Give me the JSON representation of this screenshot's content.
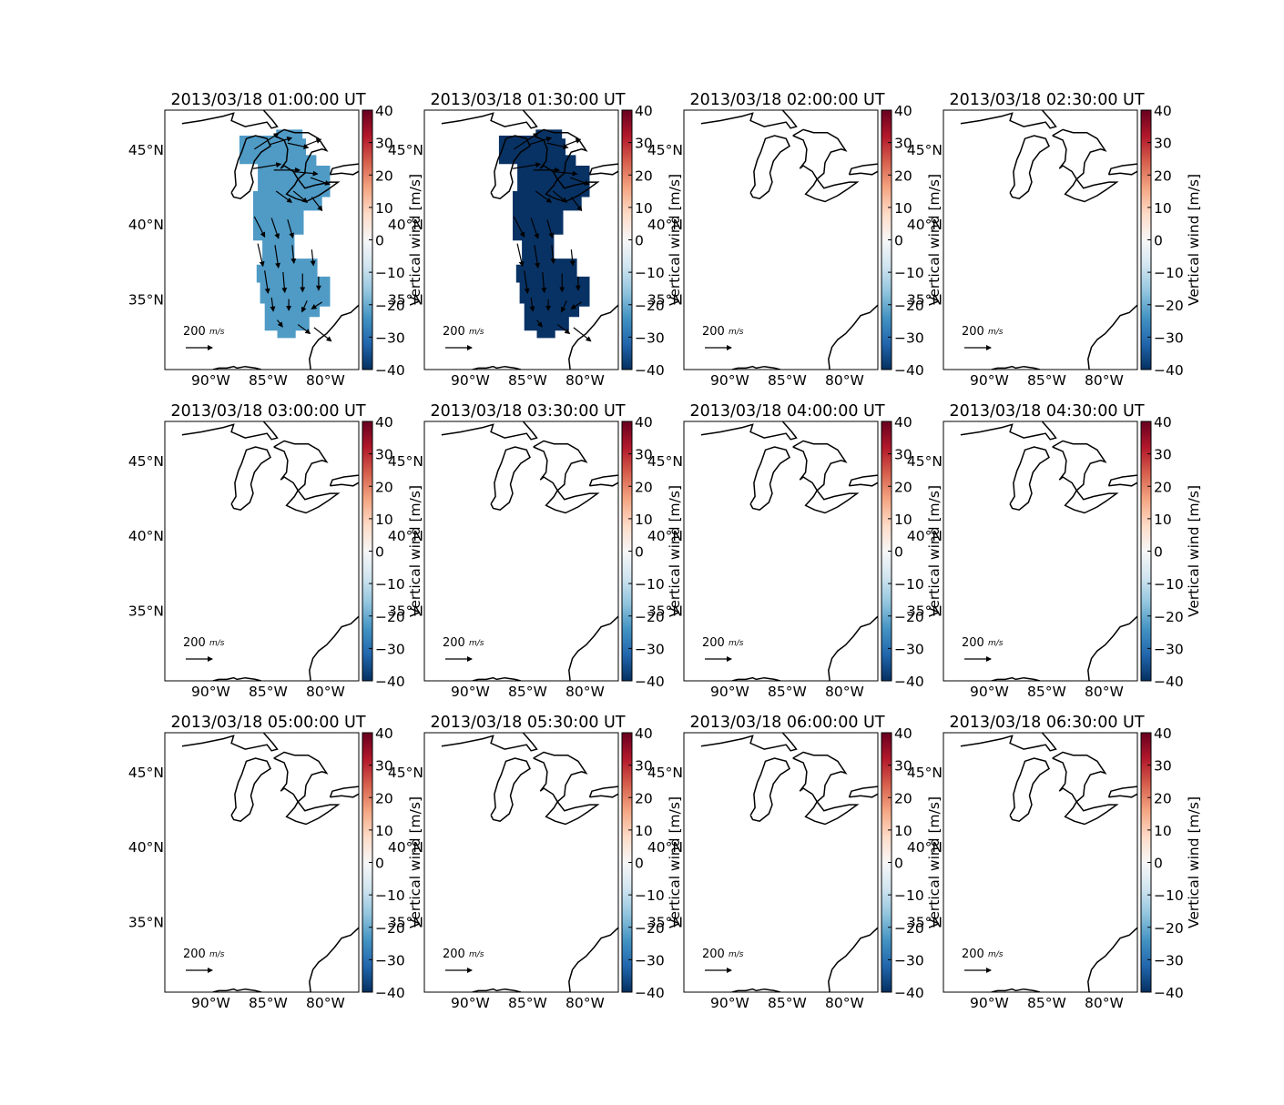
{
  "figure": {
    "colorbar_label": "Vertical wind [m/s]",
    "colorbar_ticks": [
      40,
      30,
      20,
      10,
      0,
      -10,
      -20,
      -30,
      -40
    ],
    "colorbar_range": [
      -40,
      40
    ],
    "colormap": [
      "#67001f",
      "#b2182b",
      "#d6604d",
      "#f4a582",
      "#fddbc7",
      "#f7f7f7",
      "#d1e5f0",
      "#92c5de",
      "#4393c3",
      "#2166ac",
      "#053061"
    ],
    "lon_ticks": [
      "90°W",
      "85°W",
      "80°W"
    ],
    "lat_ticks": [
      "45°N",
      "40°N",
      "35°N"
    ],
    "quiver_key_label": "200",
    "quiver_key_units": "m/s",
    "coastline_color": "#000000"
  },
  "chart_data": [
    {
      "type": "heatmap",
      "title": "2013/03/18 01:00:00 UT",
      "has_data": true,
      "field_value": -17,
      "field_color": "#4f9bc6"
    },
    {
      "type": "heatmap",
      "title": "2013/03/18 01:30:00 UT",
      "has_data": true,
      "field_value": -40,
      "field_color": "#083264"
    },
    {
      "type": "heatmap",
      "title": "2013/03/18 02:00:00 UT",
      "has_data": false
    },
    {
      "type": "heatmap",
      "title": "2013/03/18 02:30:00 UT",
      "has_data": false
    },
    {
      "type": "heatmap",
      "title": "2013/03/18 03:00:00 UT",
      "has_data": false
    },
    {
      "type": "heatmap",
      "title": "2013/03/18 03:30:00 UT",
      "has_data": false
    },
    {
      "type": "heatmap",
      "title": "2013/03/18 04:00:00 UT",
      "has_data": false
    },
    {
      "type": "heatmap",
      "title": "2013/03/18 04:30:00 UT",
      "has_data": false
    },
    {
      "type": "heatmap",
      "title": "2013/03/18 05:00:00 UT",
      "has_data": false
    },
    {
      "type": "heatmap",
      "title": "2013/03/18 05:30:00 UT",
      "has_data": false
    },
    {
      "type": "heatmap",
      "title": "2013/03/18 06:00:00 UT",
      "has_data": false
    },
    {
      "type": "heatmap",
      "title": "2013/03/18 06:30:00 UT",
      "has_data": false
    }
  ]
}
